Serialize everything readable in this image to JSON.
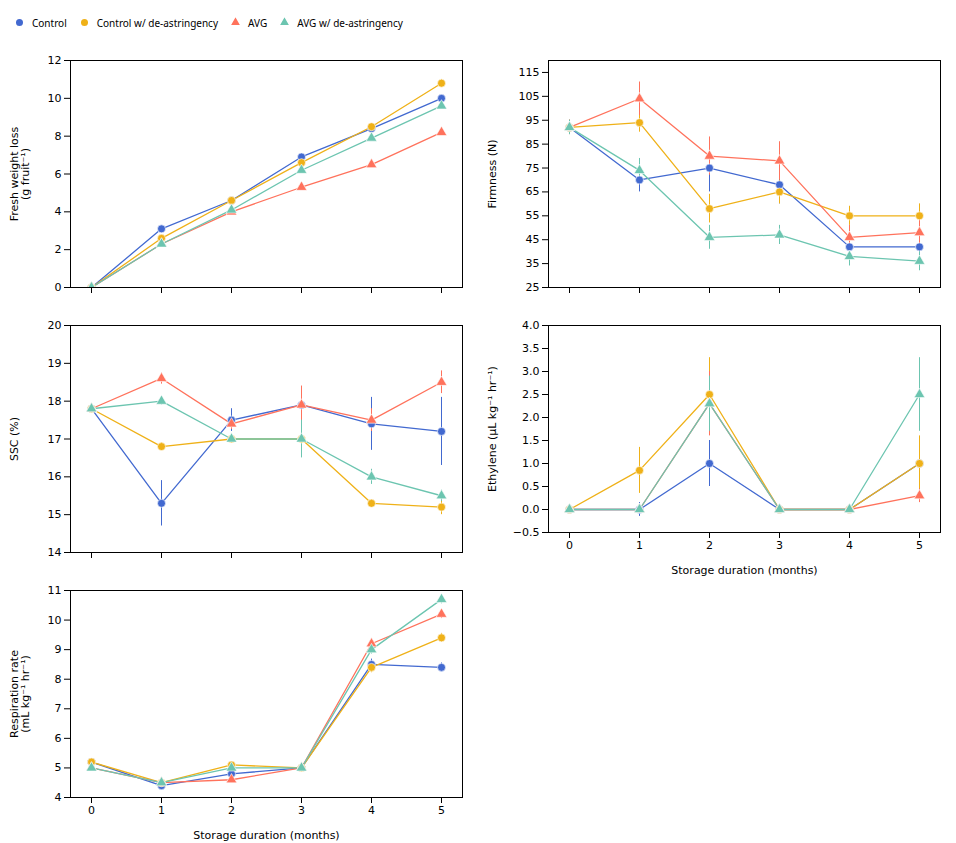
{
  "chart_data": [
    {
      "type": "line",
      "ylabel": "Fresh weight loss\n(g fruit⁻¹)",
      "legend": "top",
      "tick_labels": "y",
      "x": [
        0,
        1,
        2,
        3,
        4,
        5
      ],
      "xlim": [
        -0.3,
        5.3
      ],
      "xticks": [
        0,
        1,
        2,
        3,
        4,
        5
      ],
      "ylim": [
        0,
        12
      ],
      "yticks": [
        0,
        2,
        4,
        6,
        8,
        10,
        12
      ],
      "series": [
        {
          "name": "Control",
          "marker": "circle",
          "values": [
            0,
            3.1,
            4.6,
            6.9,
            8.4,
            10.0
          ],
          "errors": [
            0,
            0.15,
            0.15,
            0.15,
            0.15,
            0.15
          ]
        },
        {
          "name": "Control w/ de-astringency",
          "marker": "circle",
          "values": [
            0,
            2.6,
            4.6,
            6.6,
            8.5,
            10.8
          ],
          "errors": [
            0,
            0.15,
            0.15,
            0.15,
            0.15,
            0.2
          ]
        },
        {
          "name": "AVG",
          "marker": "triangle",
          "values": [
            0,
            2.3,
            4.0,
            5.3,
            6.5,
            8.2
          ],
          "errors": [
            0,
            0.1,
            0.1,
            0.1,
            0.1,
            0.15
          ]
        },
        {
          "name": "AVG w/ de-astringency",
          "marker": "triangle",
          "values": [
            0,
            2.3,
            4.1,
            6.2,
            7.9,
            9.6
          ],
          "errors": [
            0,
            0.1,
            0.1,
            0.1,
            0.1,
            0.15
          ]
        }
      ]
    },
    {
      "type": "line",
      "ylabel": "Firmness (N)",
      "tick_labels": "y",
      "x": [
        0,
        1,
        2,
        3,
        4,
        5
      ],
      "xlim": [
        -0.3,
        5.3
      ],
      "xticks": [
        0,
        1,
        2,
        3,
        4,
        5
      ],
      "ylim": [
        25,
        120
      ],
      "yticks": [
        25,
        35,
        45,
        55,
        65,
        75,
        85,
        95,
        105,
        115
      ],
      "series": [
        {
          "name": "Control",
          "marker": "circle",
          "values": [
            92,
            70,
            75,
            68,
            42,
            42
          ],
          "errors": [
            3,
            5,
            10,
            8,
            7,
            8
          ]
        },
        {
          "name": "Control w/ de-astringency",
          "marker": "circle",
          "values": [
            92,
            94,
            58,
            65,
            55,
            55
          ],
          "errors": [
            3,
            4,
            6,
            5,
            4,
            5
          ]
        },
        {
          "name": "AVG",
          "marker": "triangle",
          "values": [
            92,
            104,
            80,
            78,
            46,
            48
          ],
          "errors": [
            3,
            7,
            8,
            8,
            5,
            5
          ]
        },
        {
          "name": "AVG w/ de-astringency",
          "marker": "triangle",
          "values": [
            92,
            74,
            46,
            47,
            38,
            36
          ],
          "errors": [
            3,
            5,
            5,
            4,
            4,
            4
          ]
        }
      ]
    },
    {
      "type": "line",
      "ylabel": "SSC (%)",
      "tick_labels": "y",
      "x": [
        0,
        1,
        2,
        3,
        4,
        5
      ],
      "xlim": [
        -0.3,
        5.3
      ],
      "xticks": [
        0,
        1,
        2,
        3,
        4,
        5
      ],
      "ylim": [
        14,
        20
      ],
      "yticks": [
        14,
        15,
        16,
        17,
        18,
        19,
        20
      ],
      "series": [
        {
          "name": "Control",
          "marker": "circle",
          "values": [
            17.8,
            15.3,
            17.5,
            17.9,
            17.4,
            17.2
          ],
          "errors": [
            0.1,
            0.6,
            0.3,
            0.4,
            0.7,
            0.9
          ]
        },
        {
          "name": "Control w/ de-astringency",
          "marker": "circle",
          "values": [
            17.8,
            16.8,
            17.0,
            17.0,
            15.3,
            15.2
          ],
          "errors": [
            0.1,
            0.1,
            0.1,
            0.3,
            0.1,
            0.2
          ]
        },
        {
          "name": "AVG",
          "marker": "triangle",
          "values": [
            17.8,
            18.6,
            17.4,
            17.9,
            17.5,
            18.5
          ],
          "errors": [
            0.1,
            0.15,
            0.15,
            0.5,
            0.3,
            0.3
          ]
        },
        {
          "name": "AVG w/ de-astringency",
          "marker": "triangle",
          "values": [
            17.8,
            18.0,
            17.0,
            17.0,
            16.0,
            15.5
          ],
          "errors": [
            0.1,
            0.1,
            0.1,
            0.5,
            0.2,
            0.15
          ]
        }
      ]
    },
    {
      "type": "line",
      "ylabel": "Ethylene (μL kg⁻¹ hr⁻¹)",
      "xlabel": "Storage duration (months)",
      "x": [
        0,
        1,
        2,
        3,
        4,
        5
      ],
      "xlim": [
        -0.3,
        5.3
      ],
      "xticks": [
        0,
        1,
        2,
        3,
        4,
        5
      ],
      "ylim": [
        -0.5,
        4.0
      ],
      "yticks": [
        -0.5,
        {
          "value": 0.0,
          "label": "0.0"
        },
        0.5,
        {
          "value": 1.0,
          "label": "1.0"
        },
        1.5,
        {
          "value": 2.0,
          "label": "2.0"
        },
        2.5,
        {
          "value": 3.0,
          "label": "3.0"
        },
        3.5,
        {
          "value": 4.0,
          "label": "4.0"
        }
      ],
      "series": [
        {
          "name": "Control",
          "marker": "circle",
          "values": [
            0.0,
            0.0,
            1.0,
            0.0,
            0.0,
            1.0
          ],
          "errors": [
            0.0,
            0.15,
            0.5,
            0.0,
            0.0,
            0.3
          ]
        },
        {
          "name": "Control w/ de-astringency",
          "marker": "circle",
          "values": [
            0.0,
            0.85,
            2.5,
            0.0,
            0.0,
            1.0
          ],
          "errors": [
            0.0,
            0.5,
            0.8,
            0.0,
            0.0,
            0.6
          ]
        },
        {
          "name": "AVG",
          "marker": "triangle",
          "values": [
            0.0,
            0.0,
            2.3,
            0.0,
            0.0,
            0.3
          ],
          "errors": [
            0.0,
            0.0,
            0.7,
            0.0,
            0.0,
            0.15
          ]
        },
        {
          "name": "AVG w/ de-astringency",
          "marker": "triangle",
          "values": [
            0.0,
            0.0,
            2.3,
            0.0,
            0.0,
            2.5
          ],
          "errors": [
            0.0,
            0.0,
            0.6,
            0.0,
            0.0,
            0.8
          ]
        }
      ]
    },
    {
      "type": "line",
      "ylabel": "Respiration rate\n(mL kg⁻¹ hr⁻¹)",
      "xlabel": "Storage duration (months)",
      "x": [
        0,
        1,
        2,
        3,
        4,
        5
      ],
      "xlim": [
        -0.3,
        5.3
      ],
      "xticks": [
        0,
        1,
        2,
        3,
        4,
        5
      ],
      "ylim": [
        4,
        11
      ],
      "yticks": [
        4,
        5,
        6,
        7,
        8,
        9,
        10,
        11
      ],
      "series": [
        {
          "name": "Control",
          "marker": "circle",
          "values": [
            5.2,
            4.4,
            4.8,
            5.0,
            8.5,
            8.4
          ],
          "errors": [
            0.12,
            0.1,
            0.1,
            0.08,
            0.18,
            0.15
          ]
        },
        {
          "name": "Control w/ de-astringency",
          "marker": "circle",
          "values": [
            5.2,
            4.5,
            5.1,
            5.0,
            8.4,
            9.4
          ],
          "errors": [
            0.12,
            0.08,
            0.1,
            0.08,
            0.18,
            0.15
          ]
        },
        {
          "name": "AVG",
          "marker": "triangle",
          "values": [
            5.0,
            4.5,
            4.6,
            5.0,
            9.2,
            10.2
          ],
          "errors": [
            0.12,
            0.08,
            0.08,
            0.08,
            0.15,
            0.15
          ]
        },
        {
          "name": "AVG w/ de-astringency",
          "marker": "triangle",
          "values": [
            5.0,
            4.5,
            5.0,
            5.0,
            9.0,
            10.7
          ],
          "errors": [
            0.12,
            0.08,
            0.08,
            0.08,
            0.15,
            0.15
          ]
        }
      ]
    }
  ]
}
